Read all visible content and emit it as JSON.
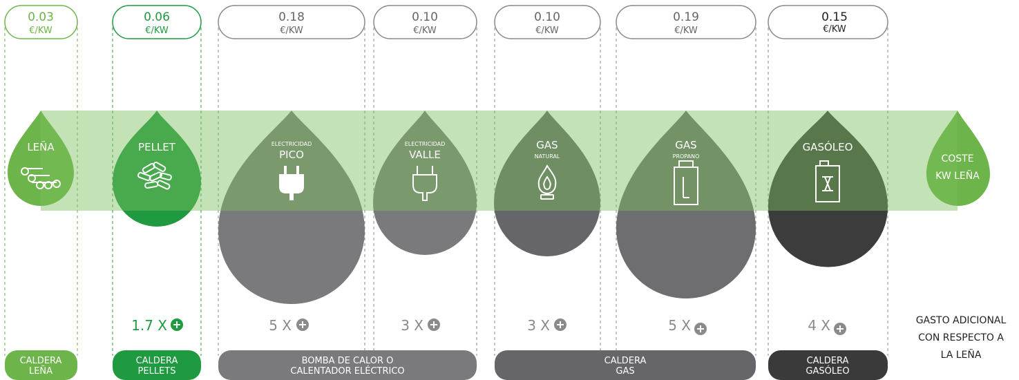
{
  "legend": {
    "line1": "GASTO ADICIONAL",
    "line2": "CON RESPECTO A",
    "line3": "LA LEÑA"
  },
  "reference": {
    "line1": "COSTE",
    "line2": "KW LEÑA",
    "color": "#6db54a"
  },
  "columns": [
    {
      "id": "lena",
      "price": "0.03",
      "unit": "€/KW",
      "title": "LEÑA",
      "pre": "",
      "sub": "",
      "icon": "firewood-icon",
      "multiplier": "",
      "plus": false,
      "label1": "CALDERA",
      "label2": "LEÑA",
      "accent": "#6db54a",
      "drop": "#6db54a"
    },
    {
      "id": "pellet",
      "price": "0.06",
      "unit": "€/KW",
      "title": "PELLET",
      "pre": "",
      "sub": "",
      "icon": "pellets-icon",
      "multiplier": "1.7 X",
      "plus": true,
      "label1": "CALDERA",
      "label2": "PELLETS",
      "accent": "#1f9a40",
      "drop": "#1f9a40"
    },
    {
      "id": "elec-pico",
      "price": "0.18",
      "unit": "€/KW",
      "title": "PICO",
      "pre": "ELECTRICIDAD",
      "sub": "",
      "icon": "plug-icon",
      "multiplier": "5 X",
      "plus": true,
      "label1": "BOMBA DE CALOR O",
      "label2": "CALENTADOR ELÉCTRICO",
      "accent": "#7a7a7c",
      "drop": "#7a7a7c"
    },
    {
      "id": "elec-valle",
      "price": "0.10",
      "unit": "€/KW",
      "title": "VALLE",
      "pre": "ELECTRICIDAD",
      "sub": "",
      "icon": "plug-outline-icon",
      "multiplier": "3 X",
      "plus": true,
      "label1": "",
      "label2": "",
      "accent": "#7a7a7c",
      "drop": "#7a7a7c"
    },
    {
      "id": "gas-natural",
      "price": "0.10",
      "unit": "€/KW",
      "title": "GAS",
      "pre": "",
      "sub": "NATURAL",
      "icon": "flame-icon",
      "multiplier": "3 X",
      "plus": true,
      "label1": "CALDERA",
      "label2": "GAS",
      "accent": "#66666a",
      "drop": "#66666a"
    },
    {
      "id": "gas-propano",
      "price": "0.19",
      "unit": "€/KW",
      "title": "GAS",
      "pre": "",
      "sub": "PROPANO",
      "icon": "gas-cylinder-icon",
      "multiplier": "5 X",
      "plus": true,
      "label1": "",
      "label2": "",
      "accent": "#66666a",
      "drop": "#6e6e70"
    },
    {
      "id": "gasoleo",
      "price": "0.15",
      "unit": "€/KW",
      "title": "GASÓLEO",
      "pre": "",
      "sub": "",
      "icon": "jerrycan-icon",
      "multiplier": "4 X",
      "plus": true,
      "label1": "CALDERA",
      "label2": "GASÓLEO",
      "accent": "#3a3a3a",
      "drop": "#3c3c3c"
    }
  ]
}
